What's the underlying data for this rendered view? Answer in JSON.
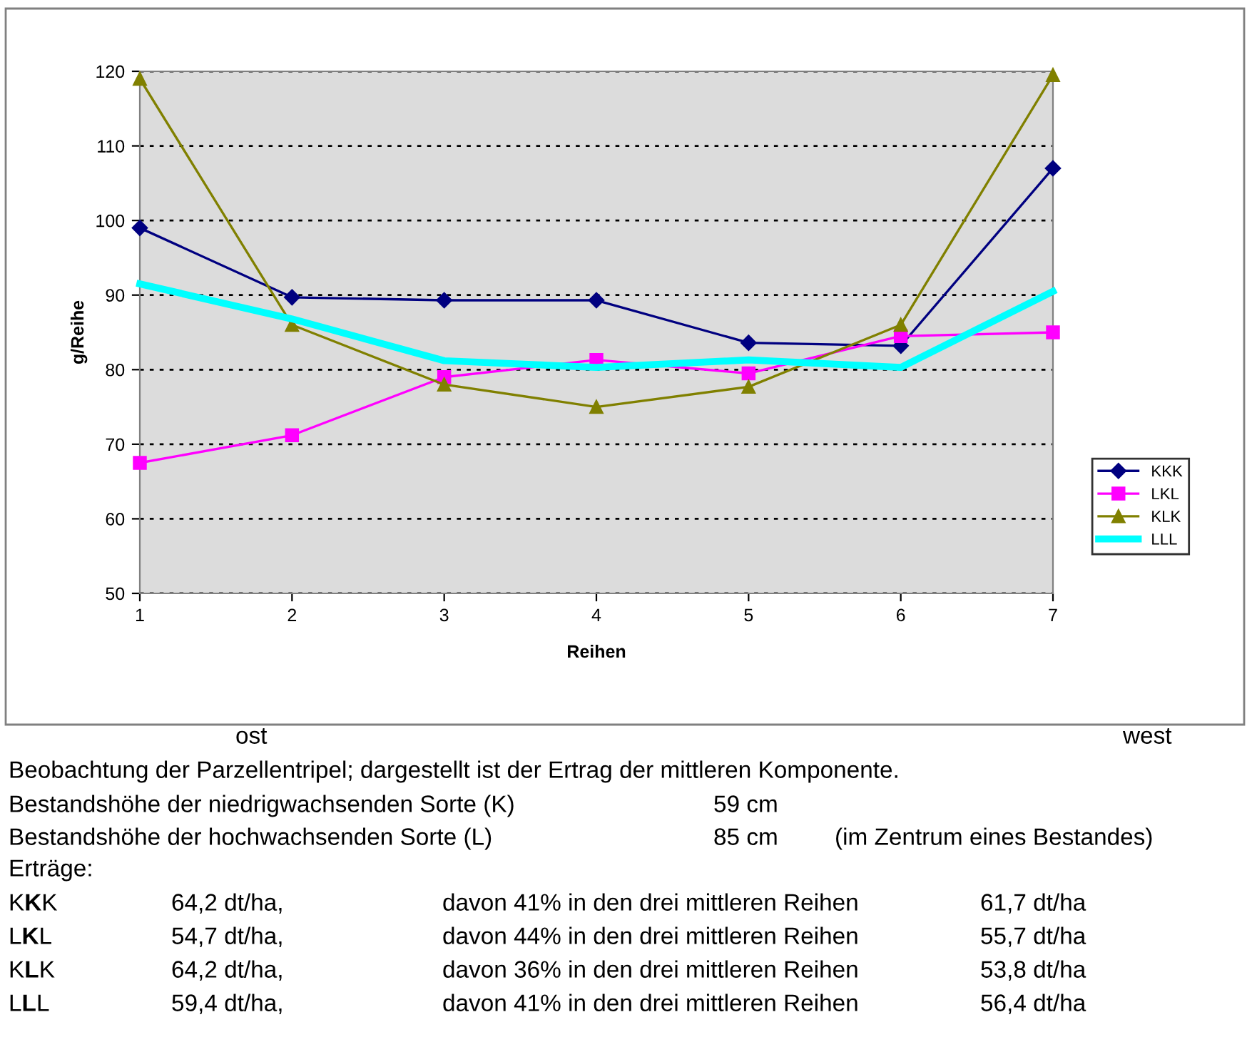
{
  "chart_data": {
    "type": "line",
    "xlabel": "Reihen",
    "ylabel": "g/Reihe",
    "x": [
      1,
      2,
      3,
      4,
      5,
      6,
      7
    ],
    "xlim": [
      1,
      7
    ],
    "xticks": [
      1,
      2,
      3,
      4,
      5,
      6,
      7
    ],
    "ylim": [
      50,
      120
    ],
    "yticks": [
      50,
      60,
      70,
      80,
      90,
      100,
      110,
      120
    ],
    "grid": "y",
    "legend": "right",
    "line_style": "solid",
    "series": [
      {
        "name": "KKK",
        "color": "#000080",
        "marker": "diamond",
        "values": [
          99,
          89.7,
          89.3,
          89.3,
          83.6,
          83.2,
          107
        ]
      },
      {
        "name": "LKL",
        "color": "#ff00ff",
        "marker": "square",
        "values": [
          67.5,
          71.2,
          79,
          81.3,
          79.5,
          84.5,
          85
        ]
      },
      {
        "name": "KLK",
        "color": "#808000",
        "marker": "triangle",
        "values": [
          119,
          86,
          78,
          75,
          77.7,
          86,
          119.5
        ]
      },
      {
        "name": "LLL",
        "color": "#00ffff",
        "marker": "none",
        "values": [
          91.5,
          86.8,
          81.2,
          80.3,
          81.3,
          80.3,
          90.5
        ]
      }
    ],
    "annotations": [
      "ost",
      "west",
      "Beobachtung der Parzellentripel; dargestellt ist der Ertrag der mittleren Komponente.",
      "Bestandshöhe der niedrigwachsenden Sorte (K)",
      "59 cm",
      "Bestandshöhe der hochwachsenden Sorte (L)",
      "85 cm",
      "(im Zentrum eines Bestandes)",
      "Erträge:",
      "KKK",
      "64,2 dt/ha,",
      "davon 41% in den drei mittleren Reihen",
      "61,7 dt/ha",
      "LKL",
      "54,7 dt/ha,",
      "davon 44% in den drei mittleren Reihen",
      "55,7 dt/ha",
      "KLK",
      "64,2 dt/ha,",
      "davon 36% in den drei mittleren Reihen",
      "53,8 dt/ha",
      "LLL",
      "59,4 dt/ha,",
      "davon 41% in den drei mittleren Reihen",
      "56,4 dt/ha"
    ]
  }
}
